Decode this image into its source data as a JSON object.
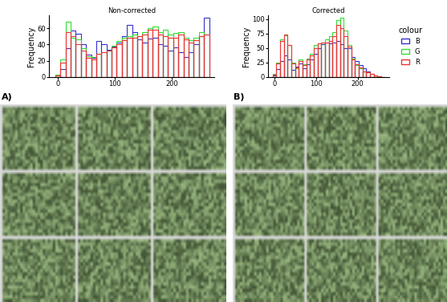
{
  "chart_data": [
    {
      "type": "histogram",
      "title": "Non-corrected",
      "y_label": "Frequency",
      "bins": [
        -4.5,
        4.5,
        13.5,
        22.5,
        31.5,
        40.5,
        49.5,
        58.5,
        67.5,
        76.5,
        85.5,
        94.5,
        103.5,
        112.5,
        121.5,
        130.5,
        139.5,
        148.5,
        157.5,
        166.5,
        175.5,
        184.5,
        193.5,
        202.5,
        211.5,
        220.5,
        229.5,
        238.5,
        247.5,
        256.5,
        265.5
      ],
      "series": [
        {
          "name": "B",
          "color": "#3333cc",
          "values": [
            2,
            10,
            35,
            57,
            53,
            40,
            27,
            24,
            44,
            40,
            33,
            37,
            42,
            50,
            64,
            55,
            46,
            42,
            47,
            48,
            40,
            38,
            32,
            36,
            30,
            25,
            30,
            40,
            50,
            73
          ]
        },
        {
          "name": "G",
          "color": "#33dd33",
          "values": [
            3,
            22,
            68,
            48,
            46,
            35,
            26,
            25,
            28,
            30,
            32,
            38,
            44,
            48,
            50,
            52,
            50,
            55,
            60,
            62,
            55,
            58,
            52,
            54,
            55,
            48,
            45,
            48,
            55,
            52
          ]
        },
        {
          "name": "R",
          "color": "#ee3333",
          "values": [
            2,
            18,
            55,
            50,
            40,
            32,
            24,
            22,
            28,
            30,
            32,
            36,
            40,
            45,
            48,
            48,
            50,
            52,
            58,
            58,
            52,
            50,
            48,
            48,
            52,
            46,
            42,
            45,
            50,
            52
          ]
        }
      ],
      "xlim": [
        -15,
        275
      ],
      "xticks": [
        0,
        100,
        200
      ],
      "ylim": [
        0,
        76
      ],
      "yticks": [
        0,
        20,
        40,
        60
      ]
    },
    {
      "type": "histogram",
      "title": "Corrected",
      "y_label": "Frequency",
      "legend": "right",
      "legend_title": "colour",
      "bins": [
        -4.5,
        4.5,
        13.5,
        22.5,
        31.5,
        40.5,
        49.5,
        58.5,
        67.5,
        76.5,
        85.5,
        94.5,
        103.5,
        112.5,
        121.5,
        130.5,
        139.5,
        148.5,
        157.5,
        166.5,
        175.5,
        184.5,
        193.5,
        202.5,
        211.5,
        220.5,
        229.5,
        238.5,
        247.5,
        256.5,
        265.5
      ],
      "series": [
        {
          "name": "B",
          "color": "#3333cc",
          "values": [
            3,
            14,
            28,
            38,
            30,
            12,
            18,
            24,
            15,
            22,
            30,
            40,
            50,
            57,
            60,
            58,
            60,
            62,
            57,
            50,
            50,
            35,
            28,
            20,
            15,
            10,
            5,
            3,
            1,
            0
          ]
        },
        {
          "name": "G",
          "color": "#33dd33",
          "values": [
            5,
            25,
            65,
            72,
            55,
            25,
            15,
            30,
            22,
            32,
            40,
            55,
            58,
            60,
            65,
            70,
            78,
            98,
            102,
            80,
            55,
            32,
            20,
            15,
            10,
            8,
            5,
            3,
            1,
            0
          ]
        },
        {
          "name": "R",
          "color": "#ee3333",
          "values": [
            4,
            23,
            62,
            73,
            56,
            24,
            16,
            28,
            20,
            30,
            38,
            50,
            58,
            60,
            60,
            62,
            70,
            90,
            85,
            70,
            52,
            30,
            22,
            16,
            10,
            8,
            5,
            3,
            1,
            0
          ]
        }
      ],
      "xlim": [
        -15,
        275
      ],
      "xticks": [
        0,
        100,
        200
      ],
      "ylim": [
        0,
        107
      ],
      "yticks": [
        0,
        25,
        50,
        75,
        100
      ]
    }
  ],
  "panel_labels": [
    "A)",
    "B)"
  ]
}
